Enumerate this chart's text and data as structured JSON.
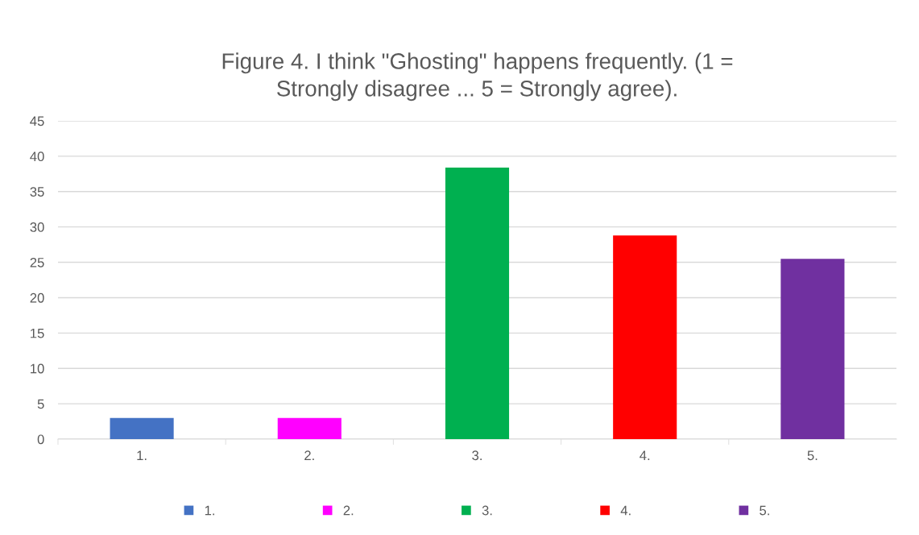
{
  "chart_data": {
    "type": "bar",
    "title": "Figure 4. I think \"Ghosting\" happens frequently. (1 =\nStrongly disagree ... 5 = Strongly agree).",
    "categories": [
      "1.",
      "2.",
      "3.",
      "4.",
      "5."
    ],
    "series": [
      {
        "name": "1.",
        "color": "#4472c4",
        "values": [
          3,
          null,
          null,
          null,
          null
        ]
      },
      {
        "name": "2.",
        "color": "#ff00ff",
        "values": [
          null,
          3,
          null,
          null,
          null
        ]
      },
      {
        "name": "3.",
        "color": "#00b050",
        "values": [
          null,
          null,
          38.4,
          null,
          null
        ]
      },
      {
        "name": "4.",
        "color": "#ff0000",
        "values": [
          null,
          null,
          null,
          28.8,
          null
        ]
      },
      {
        "name": "5.",
        "color": "#7030a0",
        "values": [
          null,
          null,
          null,
          null,
          25.5
        ]
      }
    ],
    "ylim": [
      0,
      45
    ],
    "yticks": [
      0,
      5,
      10,
      15,
      20,
      25,
      30,
      35,
      40,
      45
    ],
    "grid": "y",
    "legend": "bottom"
  }
}
